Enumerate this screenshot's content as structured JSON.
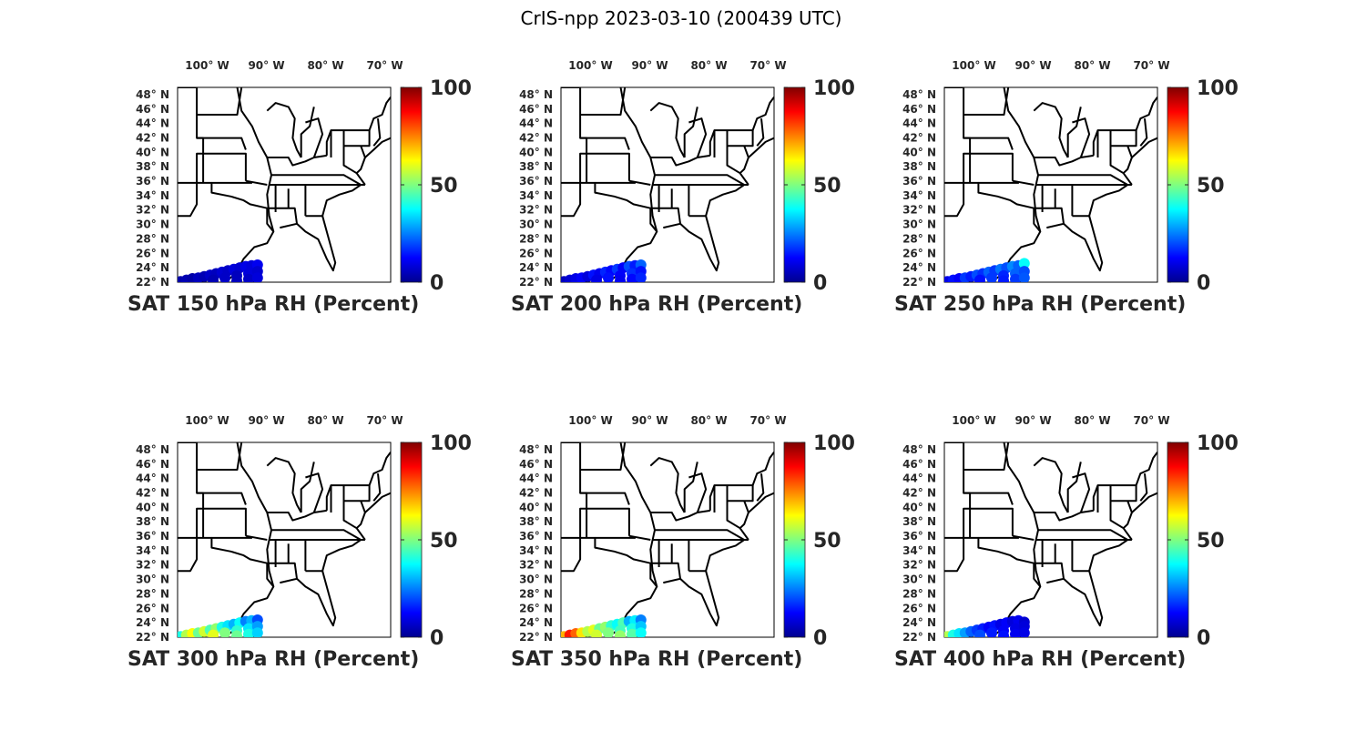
{
  "title": "CrIS-npp 2023-03-10 (200439 UTC)",
  "colormap": "jet",
  "colors": {
    "jet_stops": [
      "#00008f",
      "#0000ff",
      "#00ffff",
      "#ffff00",
      "#ff0000",
      "#800000"
    ]
  },
  "chart_data": [
    {
      "type": "scatter-map",
      "title": "SAT 150 hPa RH (Percent)",
      "lon_ticks": [
        "100° W",
        "90° W",
        "80° W",
        "70° W"
      ],
      "lat_ticks": [
        "48° N",
        "46° N",
        "44° N",
        "42° N",
        "40° N",
        "38° N",
        "36° N",
        "34° N",
        "32° N",
        "30° N",
        "28° N",
        "26° N",
        "24° N",
        "22° N"
      ],
      "colorbar": {
        "min": 0,
        "max": 100,
        "ticks": [
          "0",
          "50",
          "100"
        ]
      },
      "xlim": [
        -105,
        -69
      ],
      "ylim": [
        22,
        49
      ],
      "points": [
        {
          "lon": -104.5,
          "lat": 22.1,
          "value": 4
        },
        {
          "lon": -103.5,
          "lat": 22.3,
          "value": 5
        },
        {
          "lon": -102.5,
          "lat": 22.5,
          "value": 4
        },
        {
          "lon": -101.5,
          "lat": 22.6,
          "value": 6
        },
        {
          "lon": -100.5,
          "lat": 22.8,
          "value": 5
        },
        {
          "lon": -99.5,
          "lat": 23.0,
          "value": 7
        },
        {
          "lon": -98.5,
          "lat": 23.2,
          "value": 6
        },
        {
          "lon": -97.5,
          "lat": 23.4,
          "value": 8
        },
        {
          "lon": -96.5,
          "lat": 23.6,
          "value": 7
        },
        {
          "lon": -95.5,
          "lat": 23.8,
          "value": 9
        },
        {
          "lon": -94.5,
          "lat": 24.0,
          "value": 8
        },
        {
          "lon": -93.5,
          "lat": 24.2,
          "value": 10
        },
        {
          "lon": -92.5,
          "lat": 24.3,
          "value": 9
        },
        {
          "lon": -91.5,
          "lat": 24.4,
          "value": 11
        },
        {
          "lon": -99.0,
          "lat": 22.3,
          "value": 5
        },
        {
          "lon": -97.0,
          "lat": 22.6,
          "value": 7
        },
        {
          "lon": -95.0,
          "lat": 22.9,
          "value": 6
        },
        {
          "lon": -93.0,
          "lat": 23.2,
          "value": 9
        },
        {
          "lon": -91.5,
          "lat": 23.5,
          "value": 8
        },
        {
          "lon": -95.0,
          "lat": 22.2,
          "value": 6
        },
        {
          "lon": -93.0,
          "lat": 22.4,
          "value": 7
        },
        {
          "lon": -91.5,
          "lat": 22.6,
          "value": 9
        }
      ]
    },
    {
      "type": "scatter-map",
      "title": "SAT 200 hPa RH (Percent)",
      "lon_ticks": [
        "100° W",
        "90° W",
        "80° W",
        "70° W"
      ],
      "lat_ticks": [
        "48° N",
        "46° N",
        "44° N",
        "42° N",
        "40° N",
        "38° N",
        "36° N",
        "34° N",
        "32° N",
        "30° N",
        "28° N",
        "26° N",
        "24° N",
        "22° N"
      ],
      "colorbar": {
        "min": 0,
        "max": 100,
        "ticks": [
          "0",
          "50",
          "100"
        ]
      },
      "xlim": [
        -105,
        -69
      ],
      "ylim": [
        22,
        49
      ],
      "points": [
        {
          "lon": -104.5,
          "lat": 22.1,
          "value": 6
        },
        {
          "lon": -103.5,
          "lat": 22.3,
          "value": 8
        },
        {
          "lon": -102.5,
          "lat": 22.5,
          "value": 10
        },
        {
          "lon": -101.5,
          "lat": 22.6,
          "value": 12
        },
        {
          "lon": -100.5,
          "lat": 22.8,
          "value": 9
        },
        {
          "lon": -99.5,
          "lat": 23.0,
          "value": 14
        },
        {
          "lon": -98.5,
          "lat": 23.2,
          "value": 11
        },
        {
          "lon": -97.5,
          "lat": 23.4,
          "value": 16
        },
        {
          "lon": -96.5,
          "lat": 23.6,
          "value": 13
        },
        {
          "lon": -95.5,
          "lat": 23.8,
          "value": 18
        },
        {
          "lon": -94.5,
          "lat": 24.0,
          "value": 12
        },
        {
          "lon": -93.5,
          "lat": 24.2,
          "value": 20
        },
        {
          "lon": -92.5,
          "lat": 24.3,
          "value": 15
        },
        {
          "lon": -91.5,
          "lat": 24.4,
          "value": 22
        },
        {
          "lon": -99.0,
          "lat": 22.3,
          "value": 10
        },
        {
          "lon": -97.0,
          "lat": 22.6,
          "value": 14
        },
        {
          "lon": -95.0,
          "lat": 22.9,
          "value": 12
        },
        {
          "lon": -93.0,
          "lat": 23.2,
          "value": 17
        },
        {
          "lon": -91.5,
          "lat": 23.5,
          "value": 14
        },
        {
          "lon": -95.0,
          "lat": 22.2,
          "value": 11
        },
        {
          "lon": -93.0,
          "lat": 22.4,
          "value": 13
        },
        {
          "lon": -91.5,
          "lat": 22.6,
          "value": 16
        }
      ]
    },
    {
      "type": "scatter-map",
      "title": "SAT 250 hPa RH (Percent)",
      "lon_ticks": [
        "100° W",
        "90° W",
        "80° W",
        "70° W"
      ],
      "lat_ticks": [
        "48° N",
        "46° N",
        "44° N",
        "42° N",
        "40° N",
        "38° N",
        "36° N",
        "34° N",
        "32° N",
        "30° N",
        "28° N",
        "26° N",
        "24° N",
        "22° N"
      ],
      "colorbar": {
        "min": 0,
        "max": 100,
        "ticks": [
          "0",
          "50",
          "100"
        ]
      },
      "xlim": [
        -105,
        -69
      ],
      "ylim": [
        22,
        49
      ],
      "points": [
        {
          "lon": -104.5,
          "lat": 22.1,
          "value": 10
        },
        {
          "lon": -103.5,
          "lat": 22.3,
          "value": 14
        },
        {
          "lon": -102.5,
          "lat": 22.5,
          "value": 12
        },
        {
          "lon": -101.5,
          "lat": 22.6,
          "value": 18
        },
        {
          "lon": -100.5,
          "lat": 22.8,
          "value": 15
        },
        {
          "lon": -99.5,
          "lat": 23.0,
          "value": 20
        },
        {
          "lon": -98.5,
          "lat": 23.2,
          "value": 17
        },
        {
          "lon": -97.5,
          "lat": 23.4,
          "value": 22
        },
        {
          "lon": -96.5,
          "lat": 23.6,
          "value": 18
        },
        {
          "lon": -95.5,
          "lat": 23.8,
          "value": 24
        },
        {
          "lon": -94.5,
          "lat": 24.0,
          "value": 20
        },
        {
          "lon": -93.5,
          "lat": 24.2,
          "value": 26
        },
        {
          "lon": -92.5,
          "lat": 24.3,
          "value": 22
        },
        {
          "lon": -91.5,
          "lat": 24.6,
          "value": 38
        },
        {
          "lon": -99.0,
          "lat": 22.3,
          "value": 14
        },
        {
          "lon": -97.0,
          "lat": 22.6,
          "value": 18
        },
        {
          "lon": -95.0,
          "lat": 22.9,
          "value": 16
        },
        {
          "lon": -93.0,
          "lat": 23.2,
          "value": 22
        },
        {
          "lon": -91.5,
          "lat": 23.5,
          "value": 20
        },
        {
          "lon": -95.0,
          "lat": 22.2,
          "value": 15
        },
        {
          "lon": -93.0,
          "lat": 22.4,
          "value": 18
        },
        {
          "lon": -91.5,
          "lat": 22.6,
          "value": 21
        }
      ]
    },
    {
      "type": "scatter-map",
      "title": "SAT 300 hPa RH (Percent)",
      "lon_ticks": [
        "100° W",
        "90° W",
        "80° W",
        "70° W"
      ],
      "lat_ticks": [
        "48° N",
        "46° N",
        "44° N",
        "42° N",
        "40° N",
        "38° N",
        "36° N",
        "34° N",
        "32° N",
        "30° N",
        "28° N",
        "26° N",
        "24° N",
        "22° N"
      ],
      "colorbar": {
        "min": 0,
        "max": 100,
        "ticks": [
          "0",
          "50",
          "100"
        ]
      },
      "xlim": [
        -105,
        -69
      ],
      "ylim": [
        22,
        49
      ],
      "points": [
        {
          "lon": -104.5,
          "lat": 22.1,
          "value": 40
        },
        {
          "lon": -103.5,
          "lat": 22.3,
          "value": 55
        },
        {
          "lon": -102.5,
          "lat": 22.5,
          "value": 62
        },
        {
          "lon": -101.5,
          "lat": 22.6,
          "value": 48
        },
        {
          "lon": -100.5,
          "lat": 22.8,
          "value": 58
        },
        {
          "lon": -99.5,
          "lat": 23.0,
          "value": 45
        },
        {
          "lon": -98.5,
          "lat": 23.2,
          "value": 52
        },
        {
          "lon": -97.5,
          "lat": 23.4,
          "value": 40
        },
        {
          "lon": -96.5,
          "lat": 23.6,
          "value": 35
        },
        {
          "lon": -95.5,
          "lat": 23.8,
          "value": 30
        },
        {
          "lon": -94.5,
          "lat": 24.0,
          "value": 38
        },
        {
          "lon": -93.5,
          "lat": 24.2,
          "value": 25
        },
        {
          "lon": -92.5,
          "lat": 24.3,
          "value": 30
        },
        {
          "lon": -91.5,
          "lat": 24.4,
          "value": 20
        },
        {
          "lon": -99.0,
          "lat": 22.3,
          "value": 60
        },
        {
          "lon": -97.0,
          "lat": 22.6,
          "value": 50
        },
        {
          "lon": -95.0,
          "lat": 22.9,
          "value": 42
        },
        {
          "lon": -93.0,
          "lat": 23.2,
          "value": 35
        },
        {
          "lon": -91.5,
          "lat": 23.5,
          "value": 28
        },
        {
          "lon": -95.0,
          "lat": 22.2,
          "value": 48
        },
        {
          "lon": -93.0,
          "lat": 22.4,
          "value": 40
        },
        {
          "lon": -91.5,
          "lat": 22.6,
          "value": 33
        }
      ]
    },
    {
      "type": "scatter-map",
      "title": "SAT 350 hPa RH (Percent)",
      "lon_ticks": [
        "100° W",
        "90° W",
        "80° W",
        "70° W"
      ],
      "lat_ticks": [
        "48° N",
        "46° N",
        "44° N",
        "42° N",
        "40° N",
        "38° N",
        "36° N",
        "34° N",
        "32° N",
        "30° N",
        "28° N",
        "26° N",
        "24° N",
        "22° N"
      ],
      "colorbar": {
        "min": 0,
        "max": 100,
        "ticks": [
          "0",
          "50",
          "100"
        ]
      },
      "xlim": [
        -105,
        -69
      ],
      "ylim": [
        22,
        49
      ],
      "points": [
        {
          "lon": -104.5,
          "lat": 22.1,
          "value": 70
        },
        {
          "lon": -103.5,
          "lat": 22.3,
          "value": 85
        },
        {
          "lon": -102.5,
          "lat": 22.5,
          "value": 78
        },
        {
          "lon": -101.5,
          "lat": 22.6,
          "value": 65
        },
        {
          "lon": -100.5,
          "lat": 22.8,
          "value": 55
        },
        {
          "lon": -99.5,
          "lat": 23.0,
          "value": 60
        },
        {
          "lon": -98.5,
          "lat": 23.2,
          "value": 48
        },
        {
          "lon": -97.5,
          "lat": 23.4,
          "value": 52
        },
        {
          "lon": -96.5,
          "lat": 23.6,
          "value": 42
        },
        {
          "lon": -95.5,
          "lat": 23.8,
          "value": 38
        },
        {
          "lon": -94.5,
          "lat": 24.0,
          "value": 45
        },
        {
          "lon": -93.5,
          "lat": 24.2,
          "value": 30
        },
        {
          "lon": -92.5,
          "lat": 24.3,
          "value": 36
        },
        {
          "lon": -91.5,
          "lat": 24.4,
          "value": 25
        },
        {
          "lon": -99.0,
          "lat": 22.3,
          "value": 58
        },
        {
          "lon": -97.0,
          "lat": 22.6,
          "value": 50
        },
        {
          "lon": -95.0,
          "lat": 22.9,
          "value": 44
        },
        {
          "lon": -93.0,
          "lat": 23.2,
          "value": 40
        },
        {
          "lon": -91.5,
          "lat": 23.5,
          "value": 32
        },
        {
          "lon": -95.0,
          "lat": 22.2,
          "value": 52
        },
        {
          "lon": -93.0,
          "lat": 22.4,
          "value": 46
        },
        {
          "lon": -91.5,
          "lat": 22.6,
          "value": 38
        }
      ]
    },
    {
      "type": "scatter-map",
      "title": "SAT 400 hPa RH (Percent)",
      "lon_ticks": [
        "100° W",
        "90° W",
        "80° W",
        "70° W"
      ],
      "lat_ticks": [
        "48° N",
        "46° N",
        "44° N",
        "42° N",
        "40° N",
        "38° N",
        "36° N",
        "34° N",
        "32° N",
        "30° N",
        "28° N",
        "26° N",
        "24° N",
        "22° N"
      ],
      "colorbar": {
        "min": 0,
        "max": 100,
        "ticks": [
          "0",
          "50",
          "100"
        ]
      },
      "xlim": [
        -105,
        -69
      ],
      "ylim": [
        22,
        49
      ],
      "points": [
        {
          "lon": -104.5,
          "lat": 22.1,
          "value": 55
        },
        {
          "lon": -103.5,
          "lat": 22.3,
          "value": 40
        },
        {
          "lon": -102.5,
          "lat": 22.5,
          "value": 35
        },
        {
          "lon": -101.5,
          "lat": 22.6,
          "value": 28
        },
        {
          "lon": -100.5,
          "lat": 22.8,
          "value": 22
        },
        {
          "lon": -99.5,
          "lat": 23.0,
          "value": 18
        },
        {
          "lon": -98.5,
          "lat": 23.2,
          "value": 15
        },
        {
          "lon": -97.5,
          "lat": 23.4,
          "value": 12
        },
        {
          "lon": -96.5,
          "lat": 23.6,
          "value": 14
        },
        {
          "lon": -95.5,
          "lat": 23.8,
          "value": 10
        },
        {
          "lon": -94.5,
          "lat": 24.0,
          "value": 12
        },
        {
          "lon": -93.5,
          "lat": 24.2,
          "value": 9
        },
        {
          "lon": -92.5,
          "lat": 24.3,
          "value": 11
        },
        {
          "lon": -91.5,
          "lat": 24.1,
          "value": 8
        },
        {
          "lon": -99.0,
          "lat": 22.3,
          "value": 20
        },
        {
          "lon": -97.0,
          "lat": 22.6,
          "value": 15
        },
        {
          "lon": -95.0,
          "lat": 22.9,
          "value": 12
        },
        {
          "lon": -93.0,
          "lat": 23.2,
          "value": 10
        },
        {
          "lon": -91.5,
          "lat": 23.5,
          "value": 9
        },
        {
          "lon": -95.0,
          "lat": 22.2,
          "value": 14
        },
        {
          "lon": -93.0,
          "lat": 22.4,
          "value": 11
        },
        {
          "lon": -91.5,
          "lat": 22.6,
          "value": 10
        }
      ]
    }
  ]
}
